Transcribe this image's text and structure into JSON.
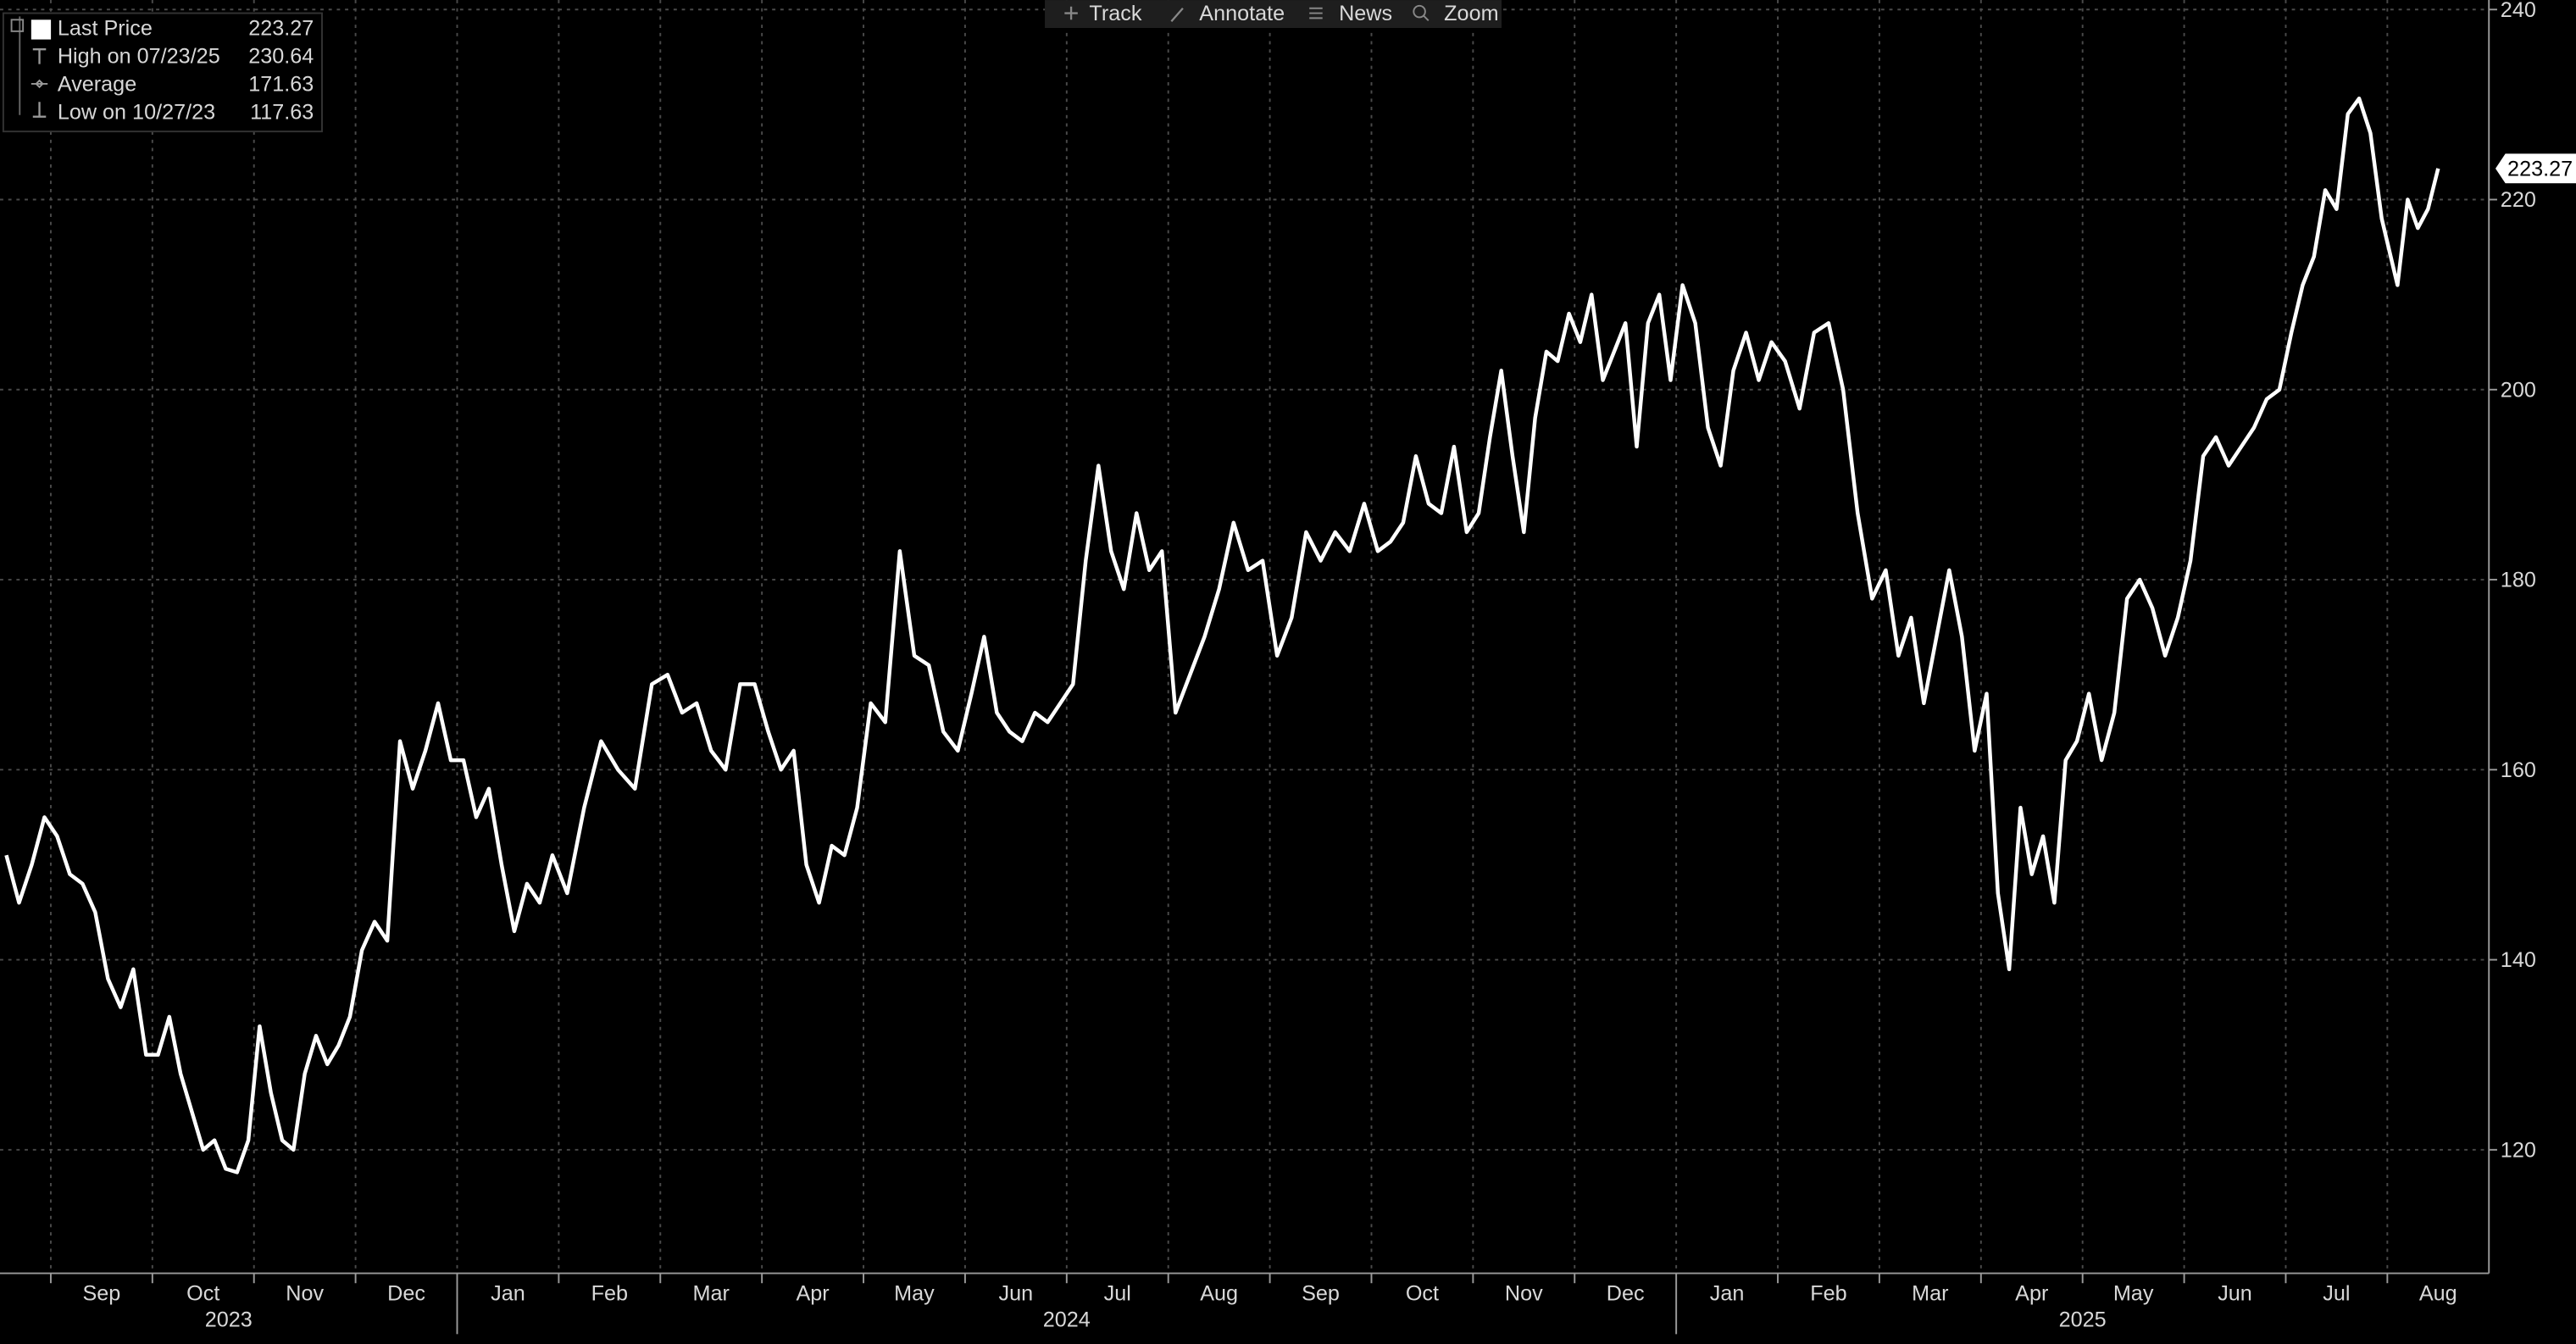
{
  "chart_data": {
    "type": "line",
    "toolbar": [
      "Track",
      "Annotate",
      "News",
      "Zoom"
    ],
    "stats": [
      {
        "label": "High on 07/23/25",
        "value": 230.64
      },
      {
        "label": "Average",
        "value": 171.63
      },
      {
        "label": "Low on 10/27/23",
        "value": 117.63
      }
    ],
    "xlim": [
      "2023-08",
      "2025-08"
    ],
    "xticks": [
      {
        "value": "2023-09",
        "label": "Sep"
      },
      {
        "value": "2023-10",
        "label": "Oct"
      },
      {
        "value": "2023-11",
        "label": "Nov"
      },
      {
        "value": "2023-12",
        "label": "Dec"
      },
      {
        "value": "2024-01",
        "label": "Jan"
      },
      {
        "value": "2024-02",
        "label": "Feb"
      },
      {
        "value": "2024-03",
        "label": "Mar"
      },
      {
        "value": "2024-04",
        "label": "Apr"
      },
      {
        "value": "2024-05",
        "label": "May"
      },
      {
        "value": "2024-06",
        "label": "Jun"
      },
      {
        "value": "2024-07",
        "label": "Jul"
      },
      {
        "value": "2024-08",
        "label": "Aug"
      },
      {
        "value": "2024-09",
        "label": "Sep"
      },
      {
        "value": "2024-10",
        "label": "Oct"
      },
      {
        "value": "2024-11",
        "label": "Nov"
      },
      {
        "value": "2024-12",
        "label": "Dec"
      },
      {
        "value": "2025-01",
        "label": "Jan"
      },
      {
        "value": "2025-02",
        "label": "Feb"
      },
      {
        "value": "2025-03",
        "label": "Mar"
      },
      {
        "value": "2025-04",
        "label": "Apr"
      },
      {
        "value": "2025-05",
        "label": "May"
      },
      {
        "value": "2025-06",
        "label": "Jun"
      },
      {
        "value": "2025-07",
        "label": "Jul"
      },
      {
        "value": "2025-08",
        "label": "Aug"
      }
    ],
    "years": [
      "2023",
      "2024",
      "2025"
    ],
    "ylim": [
      107,
      241
    ],
    "yticks": [
      120,
      140,
      160,
      180,
      200,
      220,
      240
    ],
    "grid": true,
    "series": [
      {
        "name": "Last Price",
        "color": "#ffffff",
        "x": [
          "2023-08",
          "2023-08",
          "2023-08",
          "2023-08",
          "2023-09",
          "2023-09",
          "2023-09",
          "2023-09",
          "2023-09",
          "2023-09",
          "2023-09",
          "2023-09",
          "2023-10",
          "2023-10",
          "2023-10",
          "2023-10",
          "2023-10",
          "2023-10",
          "2023-10",
          "2023-10",
          "2023-10",
          "2023-11",
          "2023-11",
          "2023-11",
          "2023-11",
          "2023-11",
          "2023-11",
          "2023-11",
          "2023-11",
          "2023-11",
          "2023-12",
          "2023-12",
          "2023-12",
          "2023-12",
          "2023-12",
          "2023-12",
          "2023-12",
          "2023-12",
          "2024-01",
          "2024-01",
          "2024-01",
          "2024-01",
          "2024-01",
          "2024-01",
          "2024-01",
          "2024-01",
          "2024-02",
          "2024-02",
          "2024-02",
          "2024-02",
          "2024-02",
          "2024-02",
          "2024-03",
          "2024-03",
          "2024-03",
          "2024-03",
          "2024-03",
          "2024-03",
          "2024-03",
          "2024-04",
          "2024-04",
          "2024-04",
          "2024-04",
          "2024-04",
          "2024-04",
          "2024-04",
          "2024-04",
          "2024-05",
          "2024-05",
          "2024-05",
          "2024-05",
          "2024-05",
          "2024-05",
          "2024-05",
          "2024-06",
          "2024-06",
          "2024-06",
          "2024-06",
          "2024-06",
          "2024-06",
          "2024-06",
          "2024-06",
          "2024-07",
          "2024-07",
          "2024-07",
          "2024-07",
          "2024-07",
          "2024-07",
          "2024-07",
          "2024-07",
          "2024-08",
          "2024-08",
          "2024-08",
          "2024-08",
          "2024-08",
          "2024-08",
          "2024-08",
          "2024-09",
          "2024-09",
          "2024-09",
          "2024-09",
          "2024-09",
          "2024-09",
          "2024-09",
          "2024-10",
          "2024-10",
          "2024-10",
          "2024-10",
          "2024-10",
          "2024-10",
          "2024-10",
          "2024-10",
          "2024-11",
          "2024-11",
          "2024-11",
          "2024-11",
          "2024-11",
          "2024-11",
          "2024-11",
          "2024-11",
          "2024-11",
          "2024-12",
          "2024-12",
          "2024-12",
          "2024-12",
          "2024-12",
          "2024-12",
          "2024-12",
          "2024-12",
          "2024-12",
          "2025-01",
          "2025-01",
          "2025-01",
          "2025-01",
          "2025-01",
          "2025-01",
          "2025-01",
          "2025-01",
          "2025-02",
          "2025-02",
          "2025-02",
          "2025-02",
          "2025-02",
          "2025-02",
          "2025-02",
          "2025-03",
          "2025-03",
          "2025-03",
          "2025-03",
          "2025-03",
          "2025-03",
          "2025-03",
          "2025-03",
          "2025-04",
          "2025-04",
          "2025-04",
          "2025-04",
          "2025-04",
          "2025-04",
          "2025-04",
          "2025-04",
          "2025-04",
          "2025-05",
          "2025-05",
          "2025-05",
          "2025-05",
          "2025-05",
          "2025-05",
          "2025-05",
          "2025-05",
          "2025-06",
          "2025-06",
          "2025-06",
          "2025-06",
          "2025-06",
          "2025-06",
          "2025-06",
          "2025-06",
          "2025-07",
          "2025-07",
          "2025-07",
          "2025-07",
          "2025-07",
          "2025-07",
          "2025-07",
          "2025-07",
          "2025-07",
          "2025-08",
          "2025-08",
          "2025-08",
          "2025-08",
          "2025-08"
        ],
        "values": [
          151,
          146,
          150,
          155,
          153,
          149,
          148,
          145,
          138,
          135,
          139,
          130,
          130,
          134,
          128,
          124,
          120,
          121,
          118,
          117.63,
          121,
          133,
          126,
          121,
          120,
          128,
          132,
          129,
          131,
          134,
          141,
          144,
          142,
          163,
          158,
          162,
          167,
          161,
          161,
          155,
          158,
          150,
          143,
          148,
          146,
          151,
          147,
          156,
          163,
          160,
          158,
          169,
          170,
          166,
          167,
          162,
          160,
          169,
          169,
          164,
          160,
          162,
          150,
          146,
          152,
          151,
          156,
          167,
          165,
          183,
          172,
          171,
          164,
          162,
          168,
          174,
          166,
          164,
          163,
          166,
          165,
          167,
          169,
          182,
          192,
          183,
          179,
          187,
          181,
          183,
          166,
          170,
          174,
          179,
          186,
          181,
          182,
          172,
          176,
          185,
          182,
          185,
          183,
          188,
          183,
          184,
          186,
          193,
          188,
          187,
          194,
          185,
          187,
          195,
          202,
          193,
          185,
          197,
          204,
          203,
          208,
          205,
          210,
          201,
          204,
          207,
          194,
          207,
          210,
          201,
          211,
          207,
          196,
          192,
          202,
          206,
          201,
          205,
          203,
          198,
          206,
          207,
          200,
          187,
          178,
          181,
          172,
          176,
          167,
          174,
          181,
          174,
          162,
          168,
          147,
          139,
          156,
          149,
          153,
          146,
          161,
          163,
          168,
          161,
          166,
          178,
          180,
          177,
          172,
          176,
          182,
          193,
          195,
          192,
          194,
          196,
          199,
          200,
          206,
          211,
          214,
          221,
          219,
          229,
          230.64,
          227,
          218,
          211,
          220,
          217,
          219,
          223.27
        ]
      }
    ]
  }
}
